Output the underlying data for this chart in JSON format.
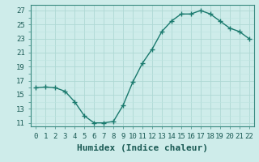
{
  "x": [
    0,
    1,
    2,
    3,
    4,
    5,
    6,
    7,
    8,
    9,
    10,
    11,
    12,
    13,
    14,
    15,
    16,
    17,
    18,
    19,
    20,
    21,
    22
  ],
  "y": [
    16,
    16.1,
    16,
    15.5,
    14,
    12,
    11,
    11,
    11.2,
    13.5,
    16.8,
    19.5,
    21.5,
    24,
    25.5,
    26.5,
    26.5,
    27,
    26.5,
    25.5,
    24.5,
    24,
    23
  ],
  "line_color": "#1a7a6e",
  "marker": "+",
  "marker_size": 4,
  "marker_lw": 1.0,
  "bg_color": "#ceecea",
  "grid_major_color": "#aed8d4",
  "grid_minor_color": "#bde4e0",
  "xlabel": "Humidex (Indice chaleur)",
  "xlabel_fontsize": 8,
  "yticks": [
    11,
    13,
    15,
    17,
    19,
    21,
    23,
    25,
    27
  ],
  "xticks": [
    0,
    1,
    2,
    3,
    4,
    5,
    6,
    7,
    8,
    9,
    10,
    11,
    12,
    13,
    14,
    15,
    16,
    17,
    18,
    19,
    20,
    21,
    22
  ],
  "ylim": [
    10.5,
    27.8
  ],
  "xlim": [
    -0.5,
    22.5
  ],
  "tick_fontsize": 6.5,
  "line_width": 1.0,
  "spine_color": "#3a8a80"
}
